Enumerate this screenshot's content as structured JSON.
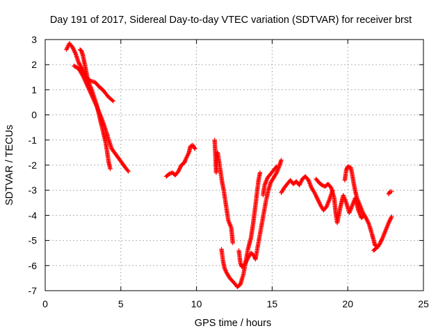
{
  "chart_data": {
    "type": "scatter",
    "title": "Day 191 of 2017, Sidereal Day-to-day VTEC variation (SDTVAR) for receiver brst",
    "xlabel": "GPS time / hours",
    "ylabel": "SDTVAR / TECUs",
    "xlim": [
      0,
      25
    ],
    "ylim": [
      -7,
      3
    ],
    "xticks": [
      "0",
      "5",
      "10",
      "15",
      "20",
      "25"
    ],
    "yticks": [
      "3",
      "2",
      "1",
      "0",
      "-1",
      "-2",
      "-3",
      "-4",
      "-5",
      "-6",
      "-7"
    ],
    "grid": true,
    "marker": "+",
    "color": "#ff0000",
    "series": [
      {
        "points": [
          [
            1.4,
            2.6
          ],
          [
            1.6,
            2.85
          ],
          [
            1.8,
            2.7
          ],
          [
            2.0,
            2.45
          ],
          [
            2.2,
            2.1
          ],
          [
            2.5,
            1.75
          ],
          [
            2.8,
            1.4
          ],
          [
            3.1,
            0.95
          ],
          [
            3.4,
            0.4
          ],
          [
            3.6,
            -0.1
          ],
          [
            3.8,
            -0.6
          ],
          [
            4.0,
            -1.1
          ],
          [
            4.1,
            -1.5
          ],
          [
            4.2,
            -1.9
          ],
          [
            4.3,
            -2.15
          ]
        ]
      },
      {
        "points": [
          [
            1.9,
            1.95
          ],
          [
            2.2,
            1.85
          ],
          [
            2.5,
            1.55
          ],
          [
            2.8,
            1.15
          ],
          [
            3.1,
            0.75
          ],
          [
            3.4,
            0.35
          ],
          [
            3.7,
            -0.1
          ],
          [
            4.0,
            -0.6
          ],
          [
            4.2,
            -1.0
          ],
          [
            4.4,
            -1.35
          ],
          [
            4.7,
            -1.6
          ],
          [
            5.0,
            -1.85
          ],
          [
            5.3,
            -2.1
          ],
          [
            5.5,
            -2.25
          ]
        ]
      },
      {
        "points": [
          [
            2.3,
            2.6
          ],
          [
            2.4,
            2.55
          ],
          [
            2.5,
            2.35
          ],
          [
            2.6,
            2.05
          ],
          [
            2.7,
            1.75
          ],
          [
            2.8,
            1.45
          ],
          [
            3.0,
            1.35
          ],
          [
            3.3,
            1.3
          ],
          [
            3.6,
            1.1
          ],
          [
            3.8,
            1.0
          ],
          [
            4.0,
            0.85
          ],
          [
            4.2,
            0.7
          ],
          [
            4.5,
            0.55
          ]
        ]
      },
      {
        "points": [
          [
            8.0,
            -2.45
          ],
          [
            8.2,
            -2.35
          ],
          [
            8.4,
            -2.3
          ],
          [
            8.6,
            -2.4
          ],
          [
            8.8,
            -2.25
          ],
          [
            9.0,
            -2.0
          ],
          [
            9.2,
            -1.9
          ],
          [
            9.3,
            -1.75
          ],
          [
            9.5,
            -1.5
          ],
          [
            9.6,
            -1.25
          ],
          [
            9.75,
            -1.2
          ],
          [
            9.9,
            -1.35
          ]
        ]
      },
      {
        "points": [
          [
            11.2,
            -1.0
          ],
          [
            11.25,
            -1.6
          ],
          [
            11.3,
            -2.3
          ],
          [
            11.4,
            -1.5
          ],
          [
            11.6,
            -2.3
          ],
          [
            11.7,
            -2.7
          ],
          [
            11.8,
            -3.0
          ],
          [
            11.9,
            -3.4
          ],
          [
            12.0,
            -3.8
          ],
          [
            12.1,
            -4.2
          ],
          [
            12.3,
            -4.5
          ],
          [
            12.4,
            -5.1
          ]
        ]
      },
      {
        "points": [
          [
            11.65,
            -5.35
          ],
          [
            11.75,
            -5.8
          ],
          [
            11.85,
            -6.1
          ],
          [
            12.0,
            -6.3
          ],
          [
            12.2,
            -6.5
          ],
          [
            12.5,
            -6.7
          ],
          [
            12.7,
            -6.85
          ],
          [
            12.9,
            -6.75
          ],
          [
            13.1,
            -6.35
          ],
          [
            13.25,
            -5.85
          ],
          [
            13.4,
            -5.35
          ],
          [
            13.6,
            -4.9
          ],
          [
            13.75,
            -4.3
          ],
          [
            13.9,
            -3.6
          ],
          [
            14.0,
            -3.1
          ],
          [
            14.1,
            -2.6
          ],
          [
            14.2,
            -2.3
          ]
        ]
      },
      {
        "points": [
          [
            12.8,
            -5.4
          ],
          [
            12.9,
            -5.9
          ],
          [
            13.0,
            -6.05
          ],
          [
            13.2,
            -5.95
          ],
          [
            13.4,
            -5.7
          ],
          [
            13.6,
            -5.5
          ],
          [
            13.8,
            -5.6
          ],
          [
            13.9,
            -5.75
          ],
          [
            14.0,
            -5.4
          ],
          [
            14.15,
            -4.9
          ],
          [
            14.3,
            -4.4
          ],
          [
            14.45,
            -3.9
          ],
          [
            14.6,
            -3.4
          ],
          [
            14.75,
            -3.0
          ],
          [
            14.9,
            -2.7
          ],
          [
            15.1,
            -2.5
          ],
          [
            15.3,
            -2.3
          ],
          [
            15.5,
            -2.0
          ],
          [
            15.6,
            -1.8
          ]
        ]
      },
      {
        "points": [
          [
            14.4,
            -3.2
          ],
          [
            14.5,
            -2.8
          ],
          [
            14.7,
            -2.5
          ],
          [
            14.9,
            -2.35
          ],
          [
            15.1,
            -2.2
          ],
          [
            15.3,
            -2.05
          ]
        ]
      },
      {
        "points": [
          [
            15.6,
            -3.1
          ],
          [
            15.8,
            -2.9
          ],
          [
            16.0,
            -2.75
          ],
          [
            16.2,
            -2.6
          ],
          [
            16.4,
            -2.75
          ],
          [
            16.6,
            -2.65
          ],
          [
            16.8,
            -2.8
          ],
          [
            17.0,
            -2.55
          ],
          [
            17.2,
            -2.45
          ],
          [
            17.4,
            -2.6
          ],
          [
            17.6,
            -2.9
          ],
          [
            17.8,
            -3.1
          ],
          [
            18.0,
            -3.35
          ],
          [
            18.2,
            -3.6
          ],
          [
            18.4,
            -3.8
          ],
          [
            18.6,
            -3.65
          ],
          [
            18.8,
            -3.35
          ],
          [
            19.0,
            -3.0
          ]
        ]
      },
      {
        "points": [
          [
            17.9,
            -2.55
          ],
          [
            18.1,
            -2.7
          ],
          [
            18.3,
            -2.8
          ],
          [
            18.5,
            -2.85
          ],
          [
            18.7,
            -2.75
          ],
          [
            18.9,
            -2.9
          ],
          [
            19.1,
            -3.3
          ],
          [
            19.2,
            -3.9
          ],
          [
            19.3,
            -4.3
          ],
          [
            19.5,
            -3.7
          ],
          [
            19.7,
            -3.2
          ],
          [
            19.9,
            -3.5
          ],
          [
            20.1,
            -3.9
          ],
          [
            20.3,
            -3.6
          ],
          [
            20.5,
            -3.3
          ],
          [
            20.7,
            -3.8
          ],
          [
            20.9,
            -4.1
          ],
          [
            21.1,
            -4.0
          ]
        ]
      },
      {
        "points": [
          [
            19.8,
            -2.6
          ],
          [
            19.9,
            -2.2
          ],
          [
            20.0,
            -2.05
          ],
          [
            20.2,
            -2.1
          ],
          [
            20.3,
            -2.4
          ],
          [
            20.4,
            -2.75
          ],
          [
            20.5,
            -3.05
          ],
          [
            20.6,
            -3.3
          ],
          [
            20.8,
            -3.6
          ],
          [
            21.0,
            -3.9
          ],
          [
            21.2,
            -4.1
          ],
          [
            21.4,
            -4.35
          ],
          [
            21.6,
            -4.75
          ],
          [
            21.8,
            -5.2
          ],
          [
            22.0,
            -5.25
          ]
        ]
      },
      {
        "points": [
          [
            21.7,
            -5.4
          ],
          [
            21.9,
            -5.3
          ],
          [
            22.1,
            -5.15
          ],
          [
            22.3,
            -4.9
          ],
          [
            22.5,
            -4.6
          ],
          [
            22.7,
            -4.3
          ],
          [
            22.9,
            -4.05
          ]
        ]
      },
      {
        "points": [
          [
            22.7,
            -3.15
          ],
          [
            22.8,
            -3.05
          ],
          [
            22.9,
            -3.05
          ]
        ]
      }
    ]
  }
}
